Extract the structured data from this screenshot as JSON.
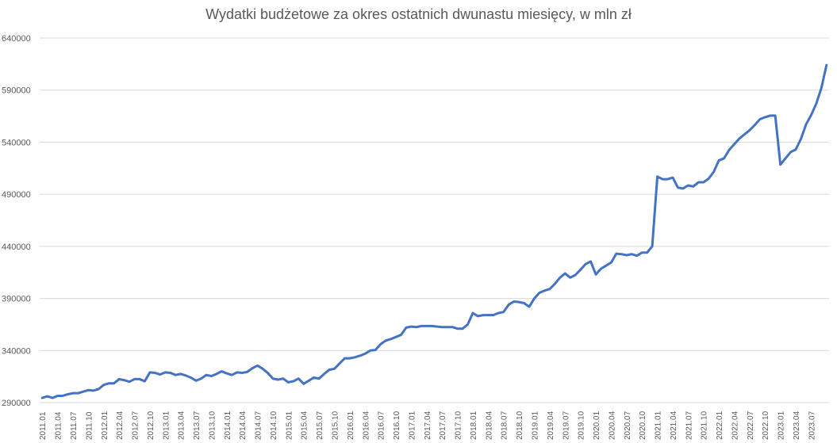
{
  "chart_data": {
    "type": "line",
    "title": "Wydatki budżetowe za okres ostatnich dwunastu miesięcy, w mln zł",
    "xlabel": "",
    "ylabel": "",
    "ylim": [
      290000,
      640000
    ],
    "yticks": [
      "290000",
      "340000",
      "390000",
      "440000",
      "490000",
      "540000",
      "590000",
      "640000"
    ],
    "grid": true,
    "line_color": "#4472c4",
    "x": [
      "2011.01",
      "2011.02",
      "2011.03",
      "2011.04",
      "2011.05",
      "2011.06",
      "2011.07",
      "2011.08",
      "2011.09",
      "2011.10",
      "2011.11",
      "2011.12",
      "2012.01",
      "2012.02",
      "2012.03",
      "2012.04",
      "2012.05",
      "2012.06",
      "2012.07",
      "2012.08",
      "2012.09",
      "2012.10",
      "2012.11",
      "2012.12",
      "2013.01",
      "2013.02",
      "2013.03",
      "2013.04",
      "2013.05",
      "2013.06",
      "2013.07",
      "2013.08",
      "2013.09",
      "2013.10",
      "2013.11",
      "2013.12",
      "2014.01",
      "2014.02",
      "2014.03",
      "2014.04",
      "2014.05",
      "2014.06",
      "2014.07",
      "2014.08",
      "2014.09",
      "2014.10",
      "2014.11",
      "2014.12",
      "2015.01",
      "2015.02",
      "2015.03",
      "2015.04",
      "2015.05",
      "2015.06",
      "2015.07",
      "2015.08",
      "2015.09",
      "2015.10",
      "2015.11",
      "2015.12",
      "2016.01",
      "2016.02",
      "2016.03",
      "2016.04",
      "2016.05",
      "2016.06",
      "2016.07",
      "2016.08",
      "2016.09",
      "2016.10",
      "2016.11",
      "2016.12",
      "2017.01",
      "2017.02",
      "2017.03",
      "2017.04",
      "2017.05",
      "2017.06",
      "2017.07",
      "2017.08",
      "2017.09",
      "2017.10",
      "2017.11",
      "2017.12",
      "2018.01",
      "2018.02",
      "2018.03",
      "2018.04",
      "2018.05",
      "2018.06",
      "2018.07",
      "2018.08",
      "2018.09",
      "2018.10",
      "2018.11",
      "2018.12",
      "2019.01",
      "2019.02",
      "2019.03",
      "2019.04",
      "2019.05",
      "2019.06",
      "2019.07",
      "2019.08",
      "2019.09",
      "2019.10",
      "2019.11",
      "2019.12",
      "2020.01",
      "2020.02",
      "2020.03",
      "2020.04",
      "2020.05",
      "2020.06",
      "2020.07",
      "2020.08",
      "2020.09",
      "2020.10",
      "2020.11",
      "2020.12",
      "2021.01",
      "2021.02",
      "2021.03",
      "2021.04",
      "2021.05",
      "2021.06",
      "2021.07",
      "2021.08",
      "2021.09",
      "2021.10",
      "2021.11",
      "2021.12",
      "2022.01",
      "2022.02",
      "2022.03",
      "2022.04",
      "2022.05",
      "2022.06",
      "2022.07",
      "2022.08",
      "2022.09",
      "2022.10",
      "2022.11",
      "2022.12",
      "2023.01",
      "2023.02",
      "2023.03",
      "2023.04",
      "2023.05",
      "2023.06",
      "2023.07",
      "2023.08",
      "2023.09",
      "2023.10"
    ],
    "xtick_labels": [
      "2011.01",
      "2011.04",
      "2011.07",
      "2011.10",
      "2012.01",
      "2012.04",
      "2012.07",
      "2012.10",
      "2013.01",
      "2013.04",
      "2013.07",
      "2013.10",
      "2014.01",
      "2014.04",
      "2014.07",
      "2014.10",
      "2015.01",
      "2015.04",
      "2015.07",
      "2015.10",
      "2016.01",
      "2016.04",
      "2016.07",
      "2016.10",
      "2017.01",
      "2017.04",
      "2017.07",
      "2017.10",
      "2018.01",
      "2018.04",
      "2018.07",
      "2018.10",
      "2019.01",
      "2019.04",
      "2019.07",
      "2019.10",
      "2020.01",
      "2020.04",
      "2020.07",
      "2020.10",
      "2021.01",
      "2021.04",
      "2021.07",
      "2021.10",
      "2022.01",
      "2022.04",
      "2022.07",
      "2022.10",
      "2023.01",
      "2023.04",
      "2023.07"
    ],
    "series": [
      {
        "values": [
          294500,
          296000,
          294500,
          296500,
          296500,
          298000,
          299000,
          299000,
          300500,
          302000,
          301500,
          303000,
          307000,
          308500,
          308500,
          312500,
          311500,
          310000,
          312500,
          312500,
          310500,
          319000,
          318500,
          317000,
          319000,
          318500,
          316500,
          317500,
          316000,
          314000,
          311000,
          313000,
          316500,
          315500,
          317500,
          320000,
          318000,
          316500,
          319000,
          318500,
          319500,
          323000,
          325500,
          322500,
          318500,
          313000,
          312000,
          313000,
          309500,
          310500,
          313000,
          308000,
          311000,
          314000,
          313000,
          317500,
          321500,
          322500,
          327500,
          332500,
          332500,
          333500,
          335000,
          337000,
          340000,
          340500,
          346000,
          349500,
          351000,
          353000,
          355000,
          362000,
          363000,
          362500,
          363500,
          363500,
          363500,
          363000,
          362500,
          362500,
          362500,
          361000,
          361000,
          365000,
          376000,
          373000,
          374000,
          374000,
          374000,
          376000,
          377000,
          384000,
          387000,
          386500,
          385500,
          382000,
          390000,
          395500,
          397500,
          399000,
          404000,
          410000,
          414000,
          410000,
          412500,
          417500,
          423000,
          425500,
          413000,
          418500,
          421500,
          424500,
          433000,
          432500,
          431500,
          432500,
          431000,
          434000,
          434000,
          440000,
          507000,
          504500,
          504500,
          506000,
          496500,
          495500,
          498500,
          497500,
          501500,
          501500,
          505000,
          511500,
          522500,
          524500,
          532500,
          538000,
          543500,
          547500,
          551500,
          556500,
          562000,
          564000,
          565500,
          565500,
          518500,
          524500,
          530500,
          533000,
          543000,
          557000,
          566000,
          577000,
          592000,
          614000
        ]
      }
    ]
  }
}
